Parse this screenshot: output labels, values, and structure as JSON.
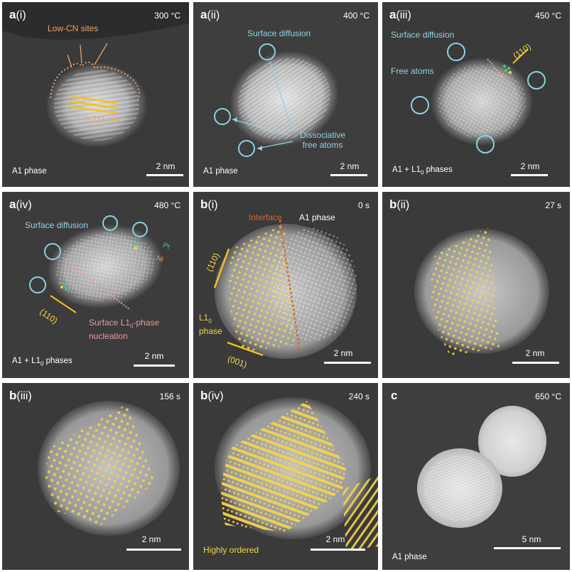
{
  "colors": {
    "blue": "#8fd0e6",
    "orange": "#f0a060",
    "yellow": "#f4d34a",
    "pink": "#e79ba0",
    "green": "#3fcf6a",
    "interface": "#e0652a"
  },
  "panels": {
    "ai": {
      "letter": "a",
      "num": "(i)",
      "temp": "300 °C",
      "phase": "A1 phase",
      "scale": "2 nm",
      "low_cn": "Low-CN sites",
      "spacing": "0.221 nm"
    },
    "aii": {
      "letter": "a",
      "num": "(ii)",
      "temp": "400 °C",
      "phase": "A1 phase",
      "scale": "2 nm",
      "surface": "Surface diffusion",
      "dissoc1": "Dissociative",
      "dissoc2": "free atoms"
    },
    "aiii": {
      "letter": "a",
      "num": "(iii)",
      "temp": "450 °C",
      "phase_a": "A1 + L1",
      "phase_sub": "0",
      "phase_b": " phases",
      "scale": "2 nm",
      "surface": "Surface diffusion",
      "free": "Free atoms",
      "plane": "(110)"
    },
    "aiv": {
      "letter": "a",
      "num": "(iv)",
      "temp": "480 °C",
      "phase_a": "A1 + L1",
      "phase_sub": "0",
      "phase_b": " phases",
      "scale": "2 nm",
      "surface": "Surface diffusion",
      "pt": "Pt",
      "ni": "Ni",
      "plane": "(110)",
      "nuc1a": "Surface L1",
      "nuc1sub": "0",
      "nuc1b": "-phase",
      "nuc2": "nucleation"
    },
    "bi": {
      "letter": "b",
      "num": "(i)",
      "time": "0 s",
      "interface": "Interface",
      "phase": "A1 phase",
      "plane110": "(110)",
      "plane001": "(001)",
      "l10a": "L1",
      "l10sub": "0",
      "l10b": "phase",
      "scale": "2 nm"
    },
    "bii": {
      "letter": "b",
      "num": "(ii)",
      "time": "27 s",
      "scale": "2 nm"
    },
    "biii": {
      "letter": "b",
      "num": "(iii)",
      "time": "156 s",
      "scale": "2 nm"
    },
    "biv": {
      "letter": "b",
      "num": "(iv)",
      "time": "240 s",
      "scale": "2 nm",
      "ordered": "Highly ordered"
    },
    "c": {
      "letter": "c",
      "num": "",
      "temp": "650 °C",
      "phase": "A1 phase",
      "scale": "5 nm"
    }
  }
}
